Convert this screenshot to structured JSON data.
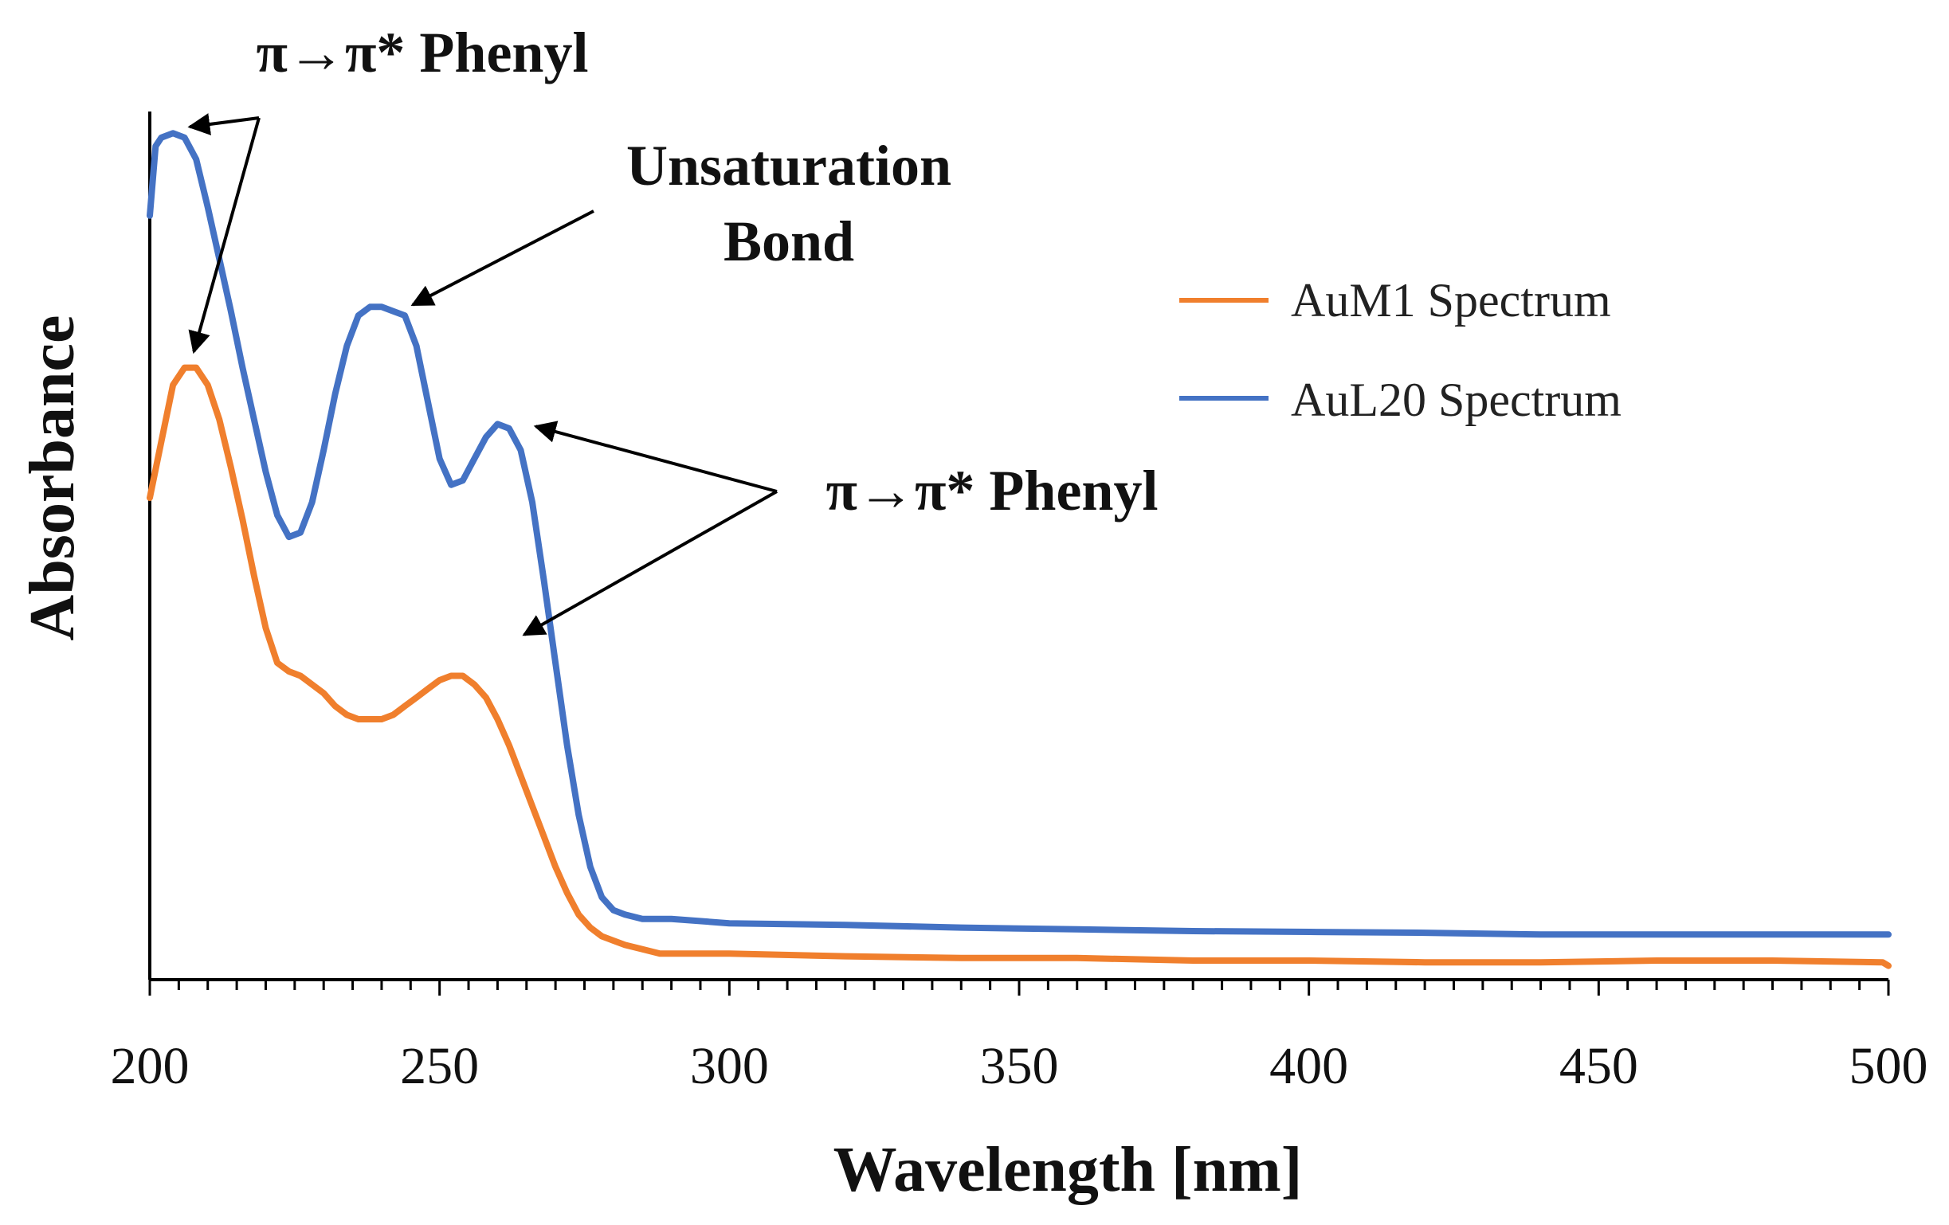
{
  "chart_data": {
    "type": "line",
    "title": "",
    "xlabel": "Wavelength [nm]",
    "ylabel": "Absorbance",
    "xlim": [
      200,
      500
    ],
    "ylim": [
      0,
      1.0
    ],
    "xticks": [
      200,
      250,
      300,
      350,
      400,
      450,
      500
    ],
    "x_tick_labels": [
      "200",
      "250",
      "300",
      "350",
      "400",
      "450",
      "500"
    ],
    "y_tick_labels_visible": false,
    "grid": false,
    "legend_position": "top-right",
    "series": [
      {
        "name": "AuM1 Spectrum",
        "color": "#F07F2D",
        "points": [
          [
            200,
            0.555
          ],
          [
            202,
            0.62
          ],
          [
            204,
            0.685
          ],
          [
            206,
            0.705
          ],
          [
            208,
            0.705
          ],
          [
            210,
            0.685
          ],
          [
            212,
            0.645
          ],
          [
            214,
            0.59
          ],
          [
            216,
            0.53
          ],
          [
            218,
            0.465
          ],
          [
            220,
            0.405
          ],
          [
            222,
            0.365
          ],
          [
            224,
            0.355
          ],
          [
            226,
            0.35
          ],
          [
            228,
            0.34
          ],
          [
            230,
            0.33
          ],
          [
            232,
            0.315
          ],
          [
            234,
            0.305
          ],
          [
            236,
            0.3
          ],
          [
            238,
            0.3
          ],
          [
            240,
            0.3
          ],
          [
            242,
            0.305
          ],
          [
            244,
            0.315
          ],
          [
            246,
            0.325
          ],
          [
            248,
            0.335
          ],
          [
            250,
            0.345
          ],
          [
            252,
            0.35
          ],
          [
            254,
            0.35
          ],
          [
            256,
            0.34
          ],
          [
            258,
            0.325
          ],
          [
            260,
            0.3
          ],
          [
            262,
            0.27
          ],
          [
            264,
            0.235
          ],
          [
            266,
            0.2
          ],
          [
            268,
            0.165
          ],
          [
            270,
            0.13
          ],
          [
            272,
            0.1
          ],
          [
            274,
            0.075
          ],
          [
            276,
            0.06
          ],
          [
            278,
            0.05
          ],
          [
            280,
            0.045
          ],
          [
            282,
            0.04
          ],
          [
            285,
            0.035
          ],
          [
            288,
            0.03
          ],
          [
            290,
            0.03
          ],
          [
            300,
            0.03
          ],
          [
            320,
            0.027
          ],
          [
            340,
            0.025
          ],
          [
            360,
            0.025
          ],
          [
            380,
            0.022
          ],
          [
            400,
            0.022
          ],
          [
            420,
            0.02
          ],
          [
            440,
            0.02
          ],
          [
            460,
            0.022
          ],
          [
            480,
            0.022
          ],
          [
            499,
            0.02
          ],
          [
            500,
            0.016
          ]
        ]
      },
      {
        "name": "AuL20 Spectrum",
        "color": "#4472C4",
        "points": [
          [
            200,
            0.88
          ],
          [
            201,
            0.96
          ],
          [
            202,
            0.97
          ],
          [
            204,
            0.975
          ],
          [
            206,
            0.97
          ],
          [
            208,
            0.945
          ],
          [
            210,
            0.89
          ],
          [
            212,
            0.83
          ],
          [
            214,
            0.77
          ],
          [
            216,
            0.705
          ],
          [
            218,
            0.645
          ],
          [
            220,
            0.585
          ],
          [
            222,
            0.535
          ],
          [
            224,
            0.51
          ],
          [
            226,
            0.515
          ],
          [
            228,
            0.55
          ],
          [
            230,
            0.61
          ],
          [
            232,
            0.675
          ],
          [
            234,
            0.73
          ],
          [
            236,
            0.765
          ],
          [
            238,
            0.775
          ],
          [
            240,
            0.775
          ],
          [
            242,
            0.77
          ],
          [
            244,
            0.765
          ],
          [
            246,
            0.73
          ],
          [
            248,
            0.665
          ],
          [
            250,
            0.6
          ],
          [
            252,
            0.57
          ],
          [
            254,
            0.575
          ],
          [
            256,
            0.6
          ],
          [
            258,
            0.625
          ],
          [
            260,
            0.64
          ],
          [
            262,
            0.635
          ],
          [
            264,
            0.61
          ],
          [
            266,
            0.55
          ],
          [
            268,
            0.46
          ],
          [
            270,
            0.365
          ],
          [
            272,
            0.27
          ],
          [
            274,
            0.19
          ],
          [
            276,
            0.13
          ],
          [
            278,
            0.095
          ],
          [
            280,
            0.08
          ],
          [
            282,
            0.075
          ],
          [
            285,
            0.07
          ],
          [
            290,
            0.07
          ],
          [
            300,
            0.065
          ],
          [
            320,
            0.063
          ],
          [
            340,
            0.06
          ],
          [
            360,
            0.058
          ],
          [
            380,
            0.056
          ],
          [
            400,
            0.055
          ],
          [
            420,
            0.054
          ],
          [
            440,
            0.052
          ],
          [
            460,
            0.052
          ],
          [
            480,
            0.052
          ],
          [
            500,
            0.052
          ]
        ]
      }
    ],
    "annotations": [
      {
        "text": "π→π* Phenyl",
        "targets": [
          [
            205.8,
            0.975
          ],
          [
            206.5,
            0.705
          ]
        ]
      },
      {
        "text": "Unsaturation",
        "text2": "Bond",
        "targets": [
          [
            244,
            0.77
          ]
        ]
      },
      {
        "text": "π→π* Phenyl",
        "targets": [
          [
            265.5,
            0.63
          ],
          [
            263.5,
            0.39
          ]
        ]
      }
    ]
  }
}
